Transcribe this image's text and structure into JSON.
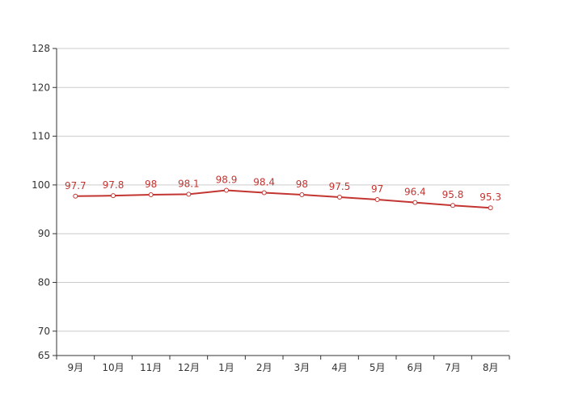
{
  "chart_data": {
    "type": "line",
    "categories": [
      "9月",
      "10月",
      "11月",
      "12月",
      "1月",
      "2月",
      "3月",
      "4月",
      "5月",
      "6月",
      "7月",
      "8月"
    ],
    "series": [
      {
        "values": [
          97.7,
          97.8,
          98,
          98.1,
          98.9,
          98.4,
          98,
          97.5,
          97,
          96.4,
          95.8,
          95.3
        ],
        "labels": [
          "97.7",
          "97.8",
          "98",
          "98.1",
          "98.9",
          "98.4",
          "98",
          "97.5",
          "97",
          "96.4",
          "95.8",
          "95.3"
        ],
        "color": "#c23531"
      }
    ],
    "y_ticks": [
      65,
      70,
      80,
      90,
      100,
      110,
      120,
      128
    ],
    "y_tick_labels": [
      "65",
      "70",
      "80",
      "90",
      "100",
      "110",
      "120",
      "128"
    ],
    "ylim": [
      65,
      128
    ],
    "grid": true,
    "title": "",
    "xlabel": "",
    "ylabel": ""
  }
}
